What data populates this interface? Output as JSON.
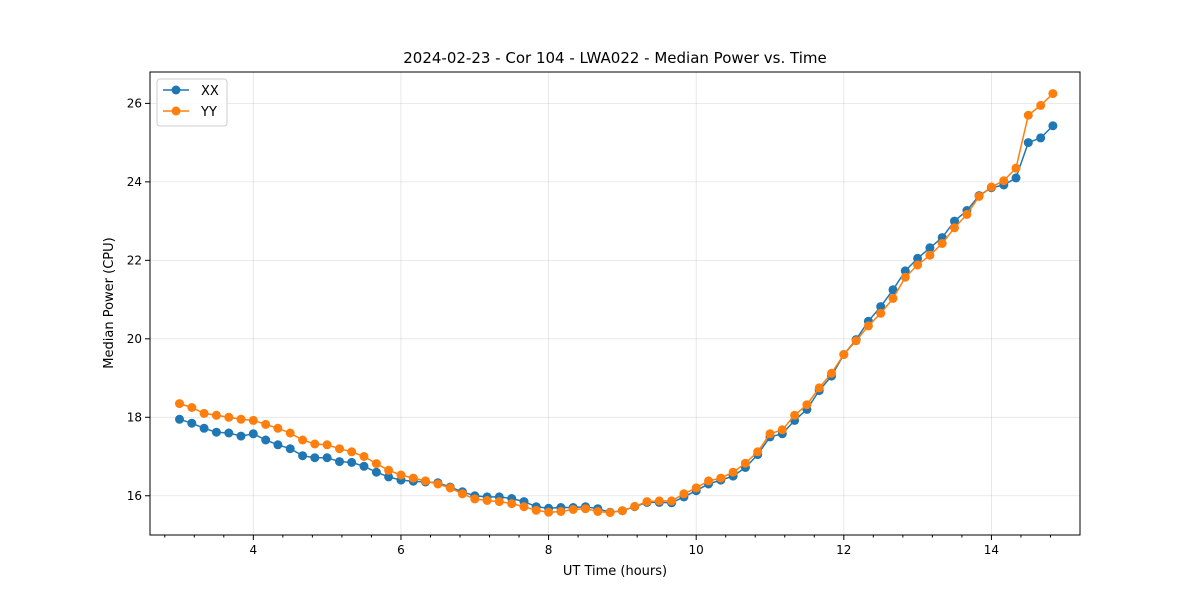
{
  "chart_data": {
    "type": "line",
    "title": "2024-02-23 - Cor 104 - LWA022 - Median Power vs. Time",
    "xlabel": "UT Time (hours)",
    "ylabel": "Median Power (CPU)",
    "xlim": [
      2.6,
      15.2
    ],
    "ylim": [
      15.0,
      26.8
    ],
    "xticks": [
      4,
      6,
      8,
      10,
      12,
      14
    ],
    "xtick_labels": [
      "4",
      "6",
      "8",
      "10",
      "12",
      "14"
    ],
    "yticks": [
      16,
      18,
      20,
      22,
      24,
      26
    ],
    "ytick_labels": [
      "16",
      "18",
      "20",
      "22",
      "24",
      "26"
    ],
    "grid": true,
    "legend_position": "top-left",
    "x": [
      3.0,
      3.167,
      3.333,
      3.5,
      3.667,
      3.833,
      4.0,
      4.167,
      4.333,
      4.5,
      4.667,
      4.833,
      5.0,
      5.167,
      5.333,
      5.5,
      5.667,
      5.833,
      6.0,
      6.167,
      6.333,
      6.5,
      6.667,
      6.833,
      7.0,
      7.167,
      7.333,
      7.5,
      7.667,
      7.833,
      8.0,
      8.167,
      8.333,
      8.5,
      8.667,
      8.833,
      9.0,
      9.167,
      9.333,
      9.5,
      9.667,
      9.833,
      10.0,
      10.167,
      10.333,
      10.5,
      10.667,
      10.833,
      11.0,
      11.167,
      11.333,
      11.5,
      11.667,
      11.833,
      12.0,
      12.167,
      12.333,
      12.5,
      12.667,
      12.833,
      13.0,
      13.167,
      13.333,
      13.5,
      13.667,
      13.833,
      14.0,
      14.167,
      14.333,
      14.5,
      14.667,
      14.833
    ],
    "series": [
      {
        "name": "XX",
        "color": "#1f77b4",
        "values": [
          17.95,
          17.85,
          17.72,
          17.62,
          17.6,
          17.52,
          17.58,
          17.42,
          17.3,
          17.2,
          17.02,
          16.97,
          16.97,
          16.87,
          16.85,
          16.75,
          16.6,
          16.48,
          16.4,
          16.37,
          16.35,
          16.33,
          16.22,
          16.1,
          16.0,
          15.97,
          15.97,
          15.93,
          15.85,
          15.72,
          15.68,
          15.7,
          15.7,
          15.72,
          15.67,
          15.58,
          15.62,
          15.72,
          15.83,
          15.83,
          15.82,
          15.97,
          16.13,
          16.3,
          16.4,
          16.5,
          16.72,
          17.05,
          17.5,
          17.58,
          17.92,
          18.2,
          18.68,
          19.05,
          19.6,
          19.98,
          20.45,
          20.82,
          21.25,
          21.73,
          22.05,
          22.32,
          22.58,
          23.0,
          23.27,
          23.65,
          23.85,
          23.92,
          24.1,
          25.0,
          25.12,
          25.43
        ]
      },
      {
        "name": "YY",
        "color": "#ff7f0e",
        "values": [
          18.35,
          18.25,
          18.1,
          18.05,
          18.0,
          17.95,
          17.92,
          17.82,
          17.72,
          17.6,
          17.42,
          17.32,
          17.3,
          17.2,
          17.12,
          17.0,
          16.82,
          16.65,
          16.53,
          16.45,
          16.38,
          16.3,
          16.2,
          16.05,
          15.92,
          15.88,
          15.85,
          15.8,
          15.72,
          15.63,
          15.58,
          15.6,
          15.65,
          15.67,
          15.6,
          15.57,
          15.62,
          15.73,
          15.85,
          15.87,
          15.87,
          16.05,
          16.2,
          16.38,
          16.45,
          16.6,
          16.83,
          17.12,
          17.58,
          17.68,
          18.05,
          18.32,
          18.75,
          19.12,
          19.6,
          19.95,
          20.33,
          20.65,
          21.03,
          21.57,
          21.88,
          22.13,
          22.43,
          22.83,
          23.17,
          23.63,
          23.87,
          24.03,
          24.35,
          25.7,
          25.95,
          26.25
        ]
      }
    ]
  }
}
